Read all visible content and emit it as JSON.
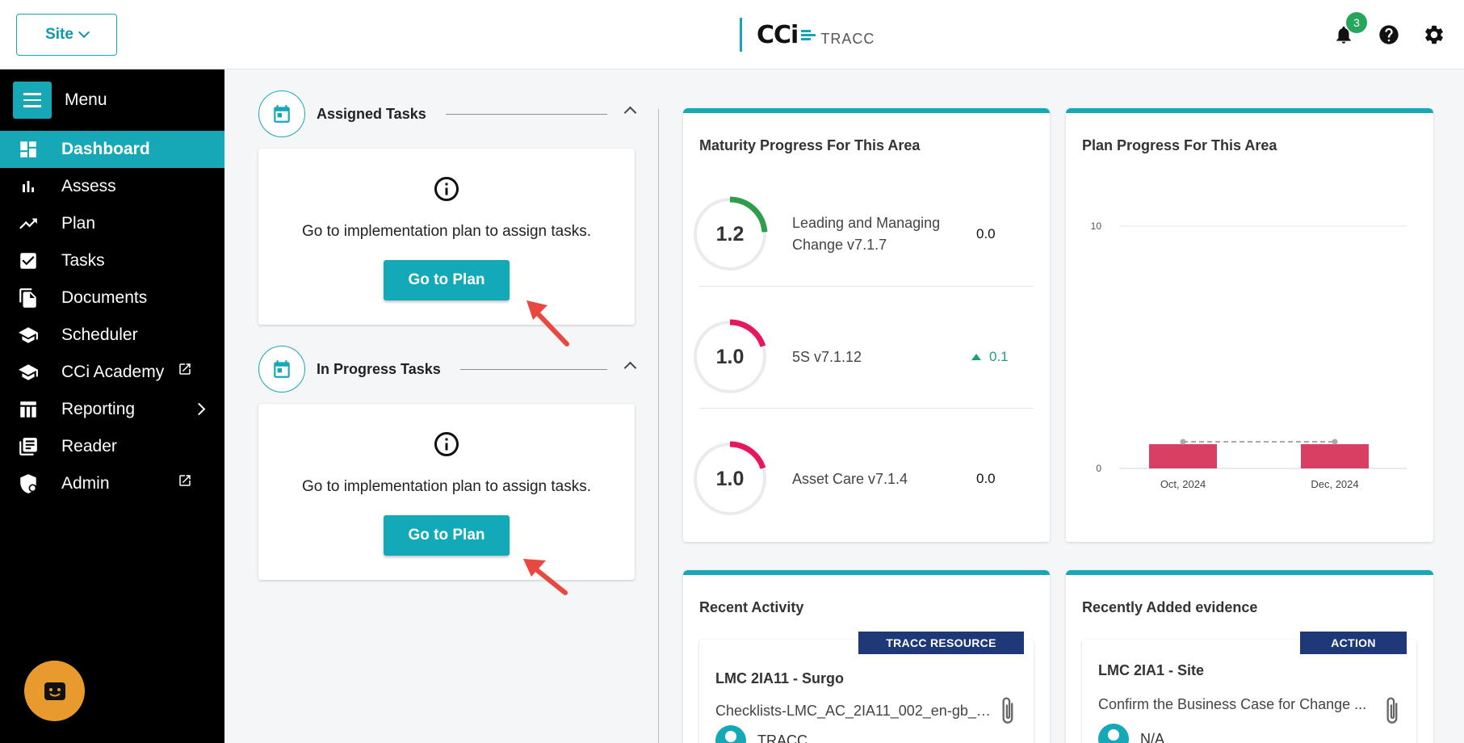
{
  "header": {
    "site_label": "Site",
    "logo_text": "CCi",
    "logo_sub": "TRACC",
    "notification_count": "3"
  },
  "sidebar": {
    "menu_label": "Menu",
    "items": [
      {
        "label": "Dashboard",
        "icon": "dashboard-icon",
        "active": true
      },
      {
        "label": "Assess",
        "icon": "bar-chart-icon"
      },
      {
        "label": "Plan",
        "icon": "trending-up-icon"
      },
      {
        "label": "Tasks",
        "icon": "checkbox-icon"
      },
      {
        "label": "Documents",
        "icon": "documents-icon"
      },
      {
        "label": "Scheduler",
        "icon": "school-icon"
      },
      {
        "label": "CCi Academy",
        "icon": "school-icon",
        "external": true
      },
      {
        "label": "Reporting",
        "icon": "table-icon",
        "submenu": true
      },
      {
        "label": "Reader",
        "icon": "reader-icon"
      },
      {
        "label": "Admin",
        "icon": "admin-shield-icon",
        "external": true
      }
    ]
  },
  "assigned_tasks": {
    "title": "Assigned Tasks",
    "message": "Go to implementation plan to assign tasks.",
    "button": "Go to Plan"
  },
  "in_progress_tasks": {
    "title": "In Progress Tasks",
    "message": "Go to implementation plan to assign tasks.",
    "button": "Go to Plan"
  },
  "maturity": {
    "title": "Maturity Progress For This Area",
    "rows": [
      {
        "score": "1.2",
        "name": "Leading and Managing Change v7.1.7",
        "value": "0.0",
        "fraction": 0.24,
        "color": "#2e9e4a"
      },
      {
        "score": "1.0",
        "name": "5S v7.1.12",
        "value": "0.1",
        "trend": "up",
        "fraction": 0.2,
        "color": "#e8175d"
      },
      {
        "score": "1.0",
        "name": "Asset Care v7.1.4",
        "value": "0.0",
        "fraction": 0.2,
        "color": "#e8175d"
      }
    ]
  },
  "plan_progress": {
    "title": "Plan Progress For This Area"
  },
  "chart_data": {
    "type": "bar",
    "categories": [
      "Oct, 2024",
      "Dec, 2024"
    ],
    "values": [
      1,
      1
    ],
    "ylim": [
      0,
      10
    ],
    "yticks": [
      "0",
      "10"
    ],
    "bar_color": "#d93f63",
    "dashed_line_values": [
      1.1,
      1.1
    ]
  },
  "recent_activity": {
    "title": "Recent Activity",
    "badge": "TRACC RESOURCE",
    "item_title": "LMC 2IA11 - Surgo",
    "item_desc": "Checklists-LMC_AC_2IA11_002_en-gb_C...",
    "item_user": "TRACC"
  },
  "recent_evidence": {
    "title": "Recently Added evidence",
    "badge": "ACTION",
    "item_title": "LMC 2IA1 - Site",
    "item_desc": "Confirm the Business Case for Change ...",
    "item_user": "N/A"
  }
}
